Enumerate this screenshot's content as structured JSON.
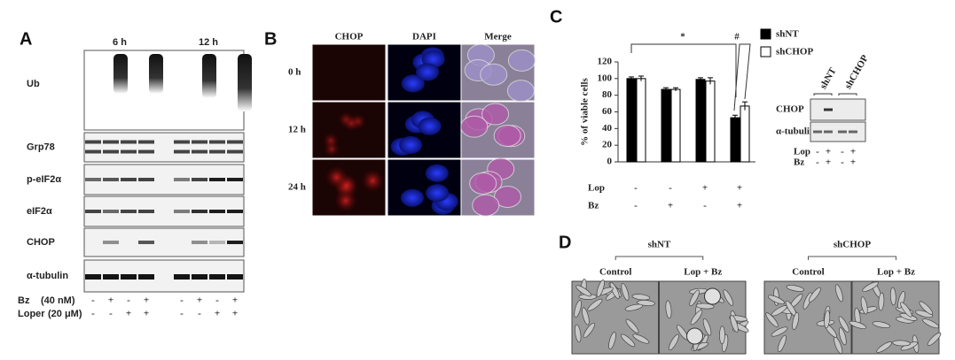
{
  "panel_a": {
    "label": "A",
    "time_headers": [
      "6 h",
      "12 h"
    ],
    "rows": [
      "Ub",
      "Grp78",
      "p-eIF2α",
      "eIF2α",
      "CHOP",
      "α-tubulin"
    ],
    "treatments": [
      {
        "name": "Bz",
        "unit": "(40 nM)",
        "signs": [
          "-",
          "+",
          "-",
          "+",
          "-",
          "+",
          "-",
          "+"
        ]
      },
      {
        "name": "Loper",
        "unit": "(20 μM)",
        "signs": [
          "-",
          "-",
          "+",
          "+",
          "-",
          "-",
          "+",
          "+"
        ]
      }
    ]
  },
  "panel_b": {
    "label": "B",
    "columns": [
      "CHOP",
      "DAPI",
      "Merge"
    ],
    "rows": [
      "0 h",
      "12 h",
      "24 h"
    ]
  },
  "panel_c": {
    "label": "C",
    "chart": {
      "type": "bar",
      "ylabel": "% of viable cells",
      "ylim": [
        0,
        120
      ],
      "yticks": [
        0,
        20,
        40,
        60,
        80,
        100,
        120
      ],
      "series": [
        {
          "name": "shNT",
          "color": "#000000",
          "values": [
            100,
            87,
            99,
            53
          ],
          "errors": [
            2,
            2,
            2,
            3
          ]
        },
        {
          "name": "shCHOP",
          "color": "#ffffff",
          "values": [
            100,
            87,
            97,
            67
          ],
          "errors": [
            3,
            2,
            4,
            5
          ]
        }
      ],
      "treatments": [
        {
          "name": "Lop",
          "signs": [
            "-",
            "-",
            "+",
            "+"
          ]
        },
        {
          "name": "Bz",
          "signs": [
            "-",
            "+",
            "-",
            "+"
          ]
        }
      ],
      "annotations": [
        "*",
        "#"
      ]
    },
    "inset": {
      "columns": [
        "shNT",
        "shCHOP"
      ],
      "rows": [
        "CHOP",
        "α-tubulin"
      ],
      "treatments": [
        {
          "name": "Lop",
          "signs": [
            "-",
            "+",
            "-",
            "+"
          ]
        },
        {
          "name": "Bz",
          "signs": [
            "-",
            "+",
            "-",
            "+"
          ]
        }
      ]
    }
  },
  "panel_d": {
    "label": "D",
    "groups": [
      {
        "name": "shNT",
        "conditions": [
          "Control",
          "Lop + Bz"
        ]
      },
      {
        "name": "shCHOP",
        "conditions": [
          "Control",
          "Lop + Bz"
        ]
      }
    ]
  }
}
